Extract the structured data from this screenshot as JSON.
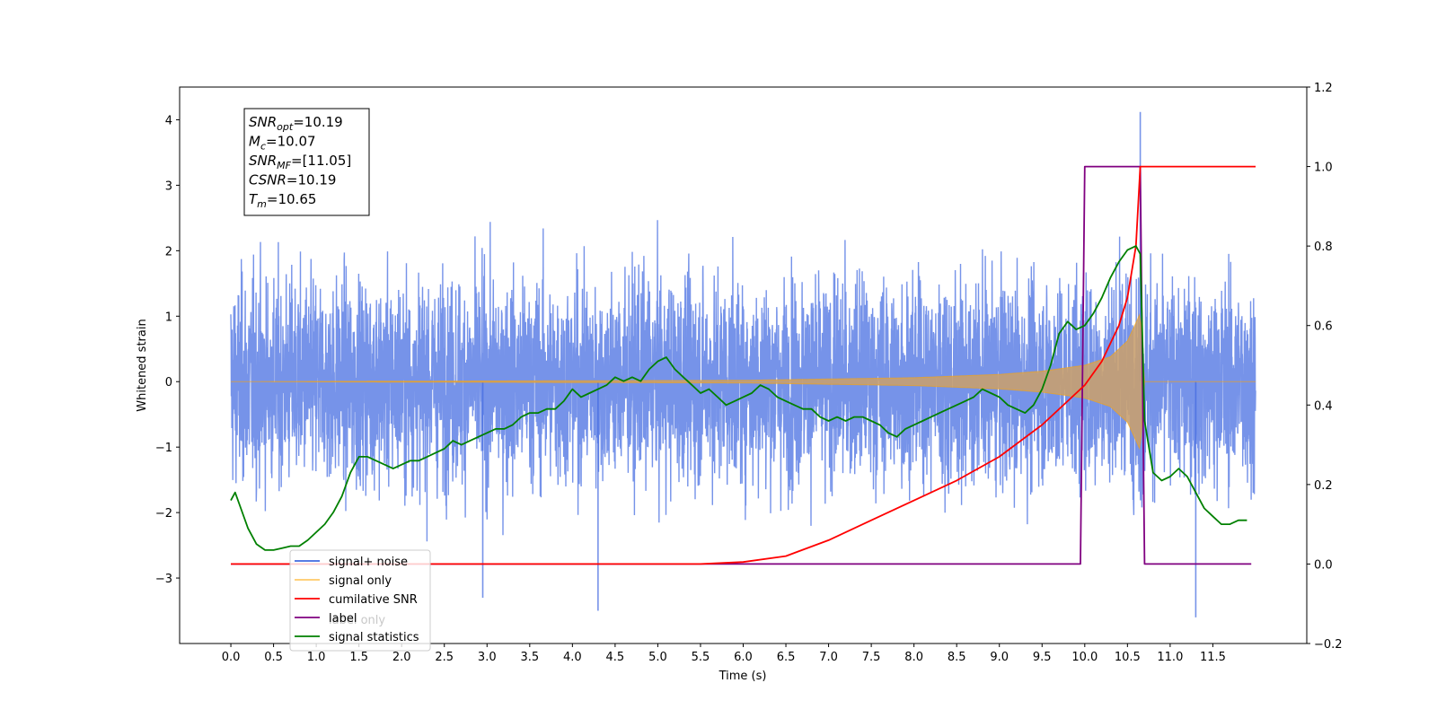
{
  "chart_data": {
    "type": "line",
    "xlabel": "Time (s)",
    "ylabel_left": "Whitened strain",
    "ylabel_right": "",
    "xlim": [
      -0.6,
      12.6
    ],
    "ylim_left": [
      -4.0,
      4.5
    ],
    "ylim_right": [
      -0.2,
      1.2
    ],
    "x_ticks": [
      "0.0",
      "0.5",
      "1.0",
      "1.5",
      "2.0",
      "2.5",
      "3.0",
      "3.5",
      "4.0",
      "4.5",
      "5.0",
      "5.5",
      "6.0",
      "6.5",
      "7.0",
      "7.5",
      "8.0",
      "8.5",
      "9.0",
      "9.5",
      "10.0",
      "10.5",
      "11.0",
      "11.5"
    ],
    "y_ticks_left": [
      "4",
      "3",
      "2",
      "1",
      "0",
      "−1",
      "−2",
      "−3"
    ],
    "y_ticks_right": [
      "1.2",
      "1.0",
      "0.8",
      "0.6",
      "0.4",
      "0.2",
      "0.0",
      "−0.2"
    ],
    "annotation": {
      "lines": [
        {
          "sym": "SNR",
          "sub": "opt",
          "value": "=10.19"
        },
        {
          "sym": "M",
          "sub": "c",
          "value": "=10.07"
        },
        {
          "sym": "SNR",
          "sub": "MF",
          "value": "=[11.05]"
        },
        {
          "sym": "CSNR",
          "sub": "",
          "value": "=10.19"
        },
        {
          "sym": "T",
          "sub": "m",
          "value": "=10.65"
        }
      ]
    },
    "legend": {
      "placement": "lower-left",
      "entries": [
        {
          "label": "signal+ noise",
          "color": "#4169e1"
        },
        {
          "label": "signal only",
          "color": "#ffa500"
        },
        {
          "label": "cumilative SNR",
          "color": "#ff0000"
        },
        {
          "label": "label",
          "color": "#800080"
        },
        {
          "label": "signal statistics",
          "color": "#008000"
        }
      ],
      "hidden_label": "label only"
    },
    "series": [
      {
        "name": "signal+ noise",
        "axis": "left",
        "color": "#4169e1",
        "x_range": [
          0.0,
          12.0
        ],
        "noise_band": [
          -1.6,
          1.6
        ],
        "max": 4.12,
        "min": -3.6
      },
      {
        "name": "signal only",
        "axis": "left",
        "color": "#ffa500",
        "envelope": {
          "x": [
            0.0,
            6.0,
            8.0,
            9.0,
            9.5,
            10.0,
            10.3,
            10.5,
            10.6,
            10.65,
            10.7,
            12.0
          ],
          "amplitude": [
            0.0,
            0.02,
            0.06,
            0.11,
            0.16,
            0.25,
            0.38,
            0.62,
            0.9,
            1.05,
            0.0,
            0.0
          ]
        }
      },
      {
        "name": "cumilative SNR",
        "axis": "right",
        "color": "#ff0000",
        "x": [
          0.0,
          5.5,
          6.0,
          6.5,
          7.0,
          7.5,
          8.0,
          8.5,
          9.0,
          9.5,
          9.8,
          10.0,
          10.2,
          10.4,
          10.5,
          10.6,
          10.65,
          12.0
        ],
        "values": [
          0.0,
          0.0,
          0.005,
          0.02,
          0.06,
          0.11,
          0.16,
          0.21,
          0.27,
          0.35,
          0.41,
          0.45,
          0.51,
          0.6,
          0.67,
          0.8,
          1.0,
          1.0
        ]
      },
      {
        "name": "label",
        "axis": "right",
        "color": "#800080",
        "x": [
          0.0,
          9.95,
          10.0,
          10.65,
          10.7,
          11.95
        ],
        "values": [
          0.0,
          0.0,
          1.0,
          1.0,
          0.0,
          0.0
        ]
      },
      {
        "name": "signal statistics",
        "axis": "right",
        "color": "#008000",
        "x": [
          0.0,
          0.05,
          0.1,
          0.2,
          0.3,
          0.4,
          0.5,
          0.6,
          0.7,
          0.8,
          0.9,
          1.0,
          1.1,
          1.2,
          1.3,
          1.4,
          1.5,
          1.6,
          1.7,
          1.8,
          1.9,
          2.0,
          2.1,
          2.2,
          2.3,
          2.4,
          2.5,
          2.6,
          2.7,
          2.8,
          2.9,
          3.0,
          3.1,
          3.2,
          3.3,
          3.4,
          3.5,
          3.6,
          3.7,
          3.8,
          3.9,
          4.0,
          4.1,
          4.2,
          4.3,
          4.4,
          4.5,
          4.6,
          4.7,
          4.8,
          4.9,
          5.0,
          5.1,
          5.2,
          5.3,
          5.4,
          5.5,
          5.6,
          5.7,
          5.8,
          5.9,
          6.0,
          6.1,
          6.2,
          6.3,
          6.4,
          6.5,
          6.6,
          6.7,
          6.8,
          6.9,
          7.0,
          7.1,
          7.2,
          7.3,
          7.4,
          7.5,
          7.6,
          7.7,
          7.8,
          7.9,
          8.0,
          8.1,
          8.2,
          8.3,
          8.4,
          8.5,
          8.6,
          8.7,
          8.8,
          8.9,
          9.0,
          9.1,
          9.2,
          9.3,
          9.4,
          9.5,
          9.6,
          9.7,
          9.8,
          9.9,
          10.0,
          10.1,
          10.2,
          10.3,
          10.4,
          10.5,
          10.6,
          10.65,
          10.7,
          10.8,
          10.9,
          11.0,
          11.1,
          11.2,
          11.3,
          11.4,
          11.5,
          11.6,
          11.7,
          11.8,
          11.9
        ],
        "values": [
          0.16,
          0.18,
          0.15,
          0.09,
          0.05,
          0.035,
          0.035,
          0.04,
          0.045,
          0.045,
          0.06,
          0.08,
          0.1,
          0.13,
          0.17,
          0.23,
          0.27,
          0.27,
          0.26,
          0.25,
          0.24,
          0.25,
          0.26,
          0.26,
          0.27,
          0.28,
          0.29,
          0.31,
          0.3,
          0.31,
          0.32,
          0.33,
          0.34,
          0.34,
          0.35,
          0.37,
          0.38,
          0.38,
          0.39,
          0.39,
          0.41,
          0.44,
          0.42,
          0.43,
          0.44,
          0.45,
          0.47,
          0.46,
          0.47,
          0.46,
          0.49,
          0.51,
          0.52,
          0.49,
          0.47,
          0.45,
          0.43,
          0.44,
          0.42,
          0.4,
          0.41,
          0.42,
          0.43,
          0.45,
          0.44,
          0.42,
          0.41,
          0.4,
          0.39,
          0.39,
          0.37,
          0.36,
          0.37,
          0.36,
          0.37,
          0.37,
          0.36,
          0.35,
          0.33,
          0.32,
          0.34,
          0.35,
          0.36,
          0.37,
          0.38,
          0.39,
          0.4,
          0.41,
          0.42,
          0.44,
          0.43,
          0.42,
          0.4,
          0.39,
          0.38,
          0.4,
          0.44,
          0.5,
          0.58,
          0.61,
          0.59,
          0.6,
          0.63,
          0.67,
          0.72,
          0.76,
          0.79,
          0.8,
          0.78,
          0.36,
          0.23,
          0.21,
          0.22,
          0.24,
          0.22,
          0.18,
          0.14,
          0.12,
          0.1,
          0.1,
          0.11,
          0.11
        ]
      }
    ]
  }
}
